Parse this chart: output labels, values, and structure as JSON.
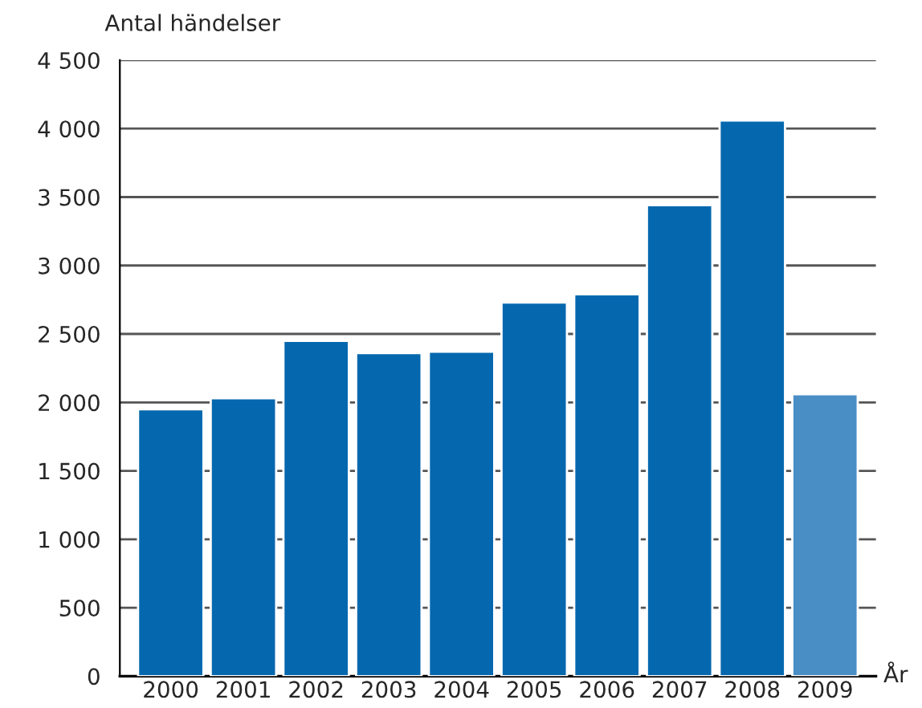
{
  "chart_data": {
    "type": "bar",
    "ylabel": "Antal händelser",
    "xlabel": "År",
    "categories": [
      "2000",
      "2001",
      "2002",
      "2003",
      "2004",
      "2005",
      "2006",
      "2007",
      "2008",
      "2009"
    ],
    "values": [
      1950,
      2030,
      2450,
      2360,
      2370,
      2730,
      2790,
      3440,
      4060,
      2060
    ],
    "colors": [
      "#0568ae",
      "#0568ae",
      "#0568ae",
      "#0568ae",
      "#0568ae",
      "#0568ae",
      "#0568ae",
      "#0568ae",
      "#0568ae",
      "#4a8ec6"
    ],
    "ylim": [
      0,
      4500
    ],
    "yticks": [
      0,
      500,
      {
        "value": 1000,
        "label": "1 000"
      },
      {
        "value": 1500,
        "label": "1 500"
      },
      {
        "value": 2000,
        "label": "2 000"
      },
      {
        "value": 2500,
        "label": "2 500"
      },
      {
        "value": 3000,
        "label": "3 000"
      },
      {
        "value": 3500,
        "label": "3 500"
      },
      {
        "value": 4000,
        "label": "4 000"
      },
      {
        "value": 4500,
        "label": "4 500"
      }
    ],
    "grid": "y",
    "legend": false
  }
}
